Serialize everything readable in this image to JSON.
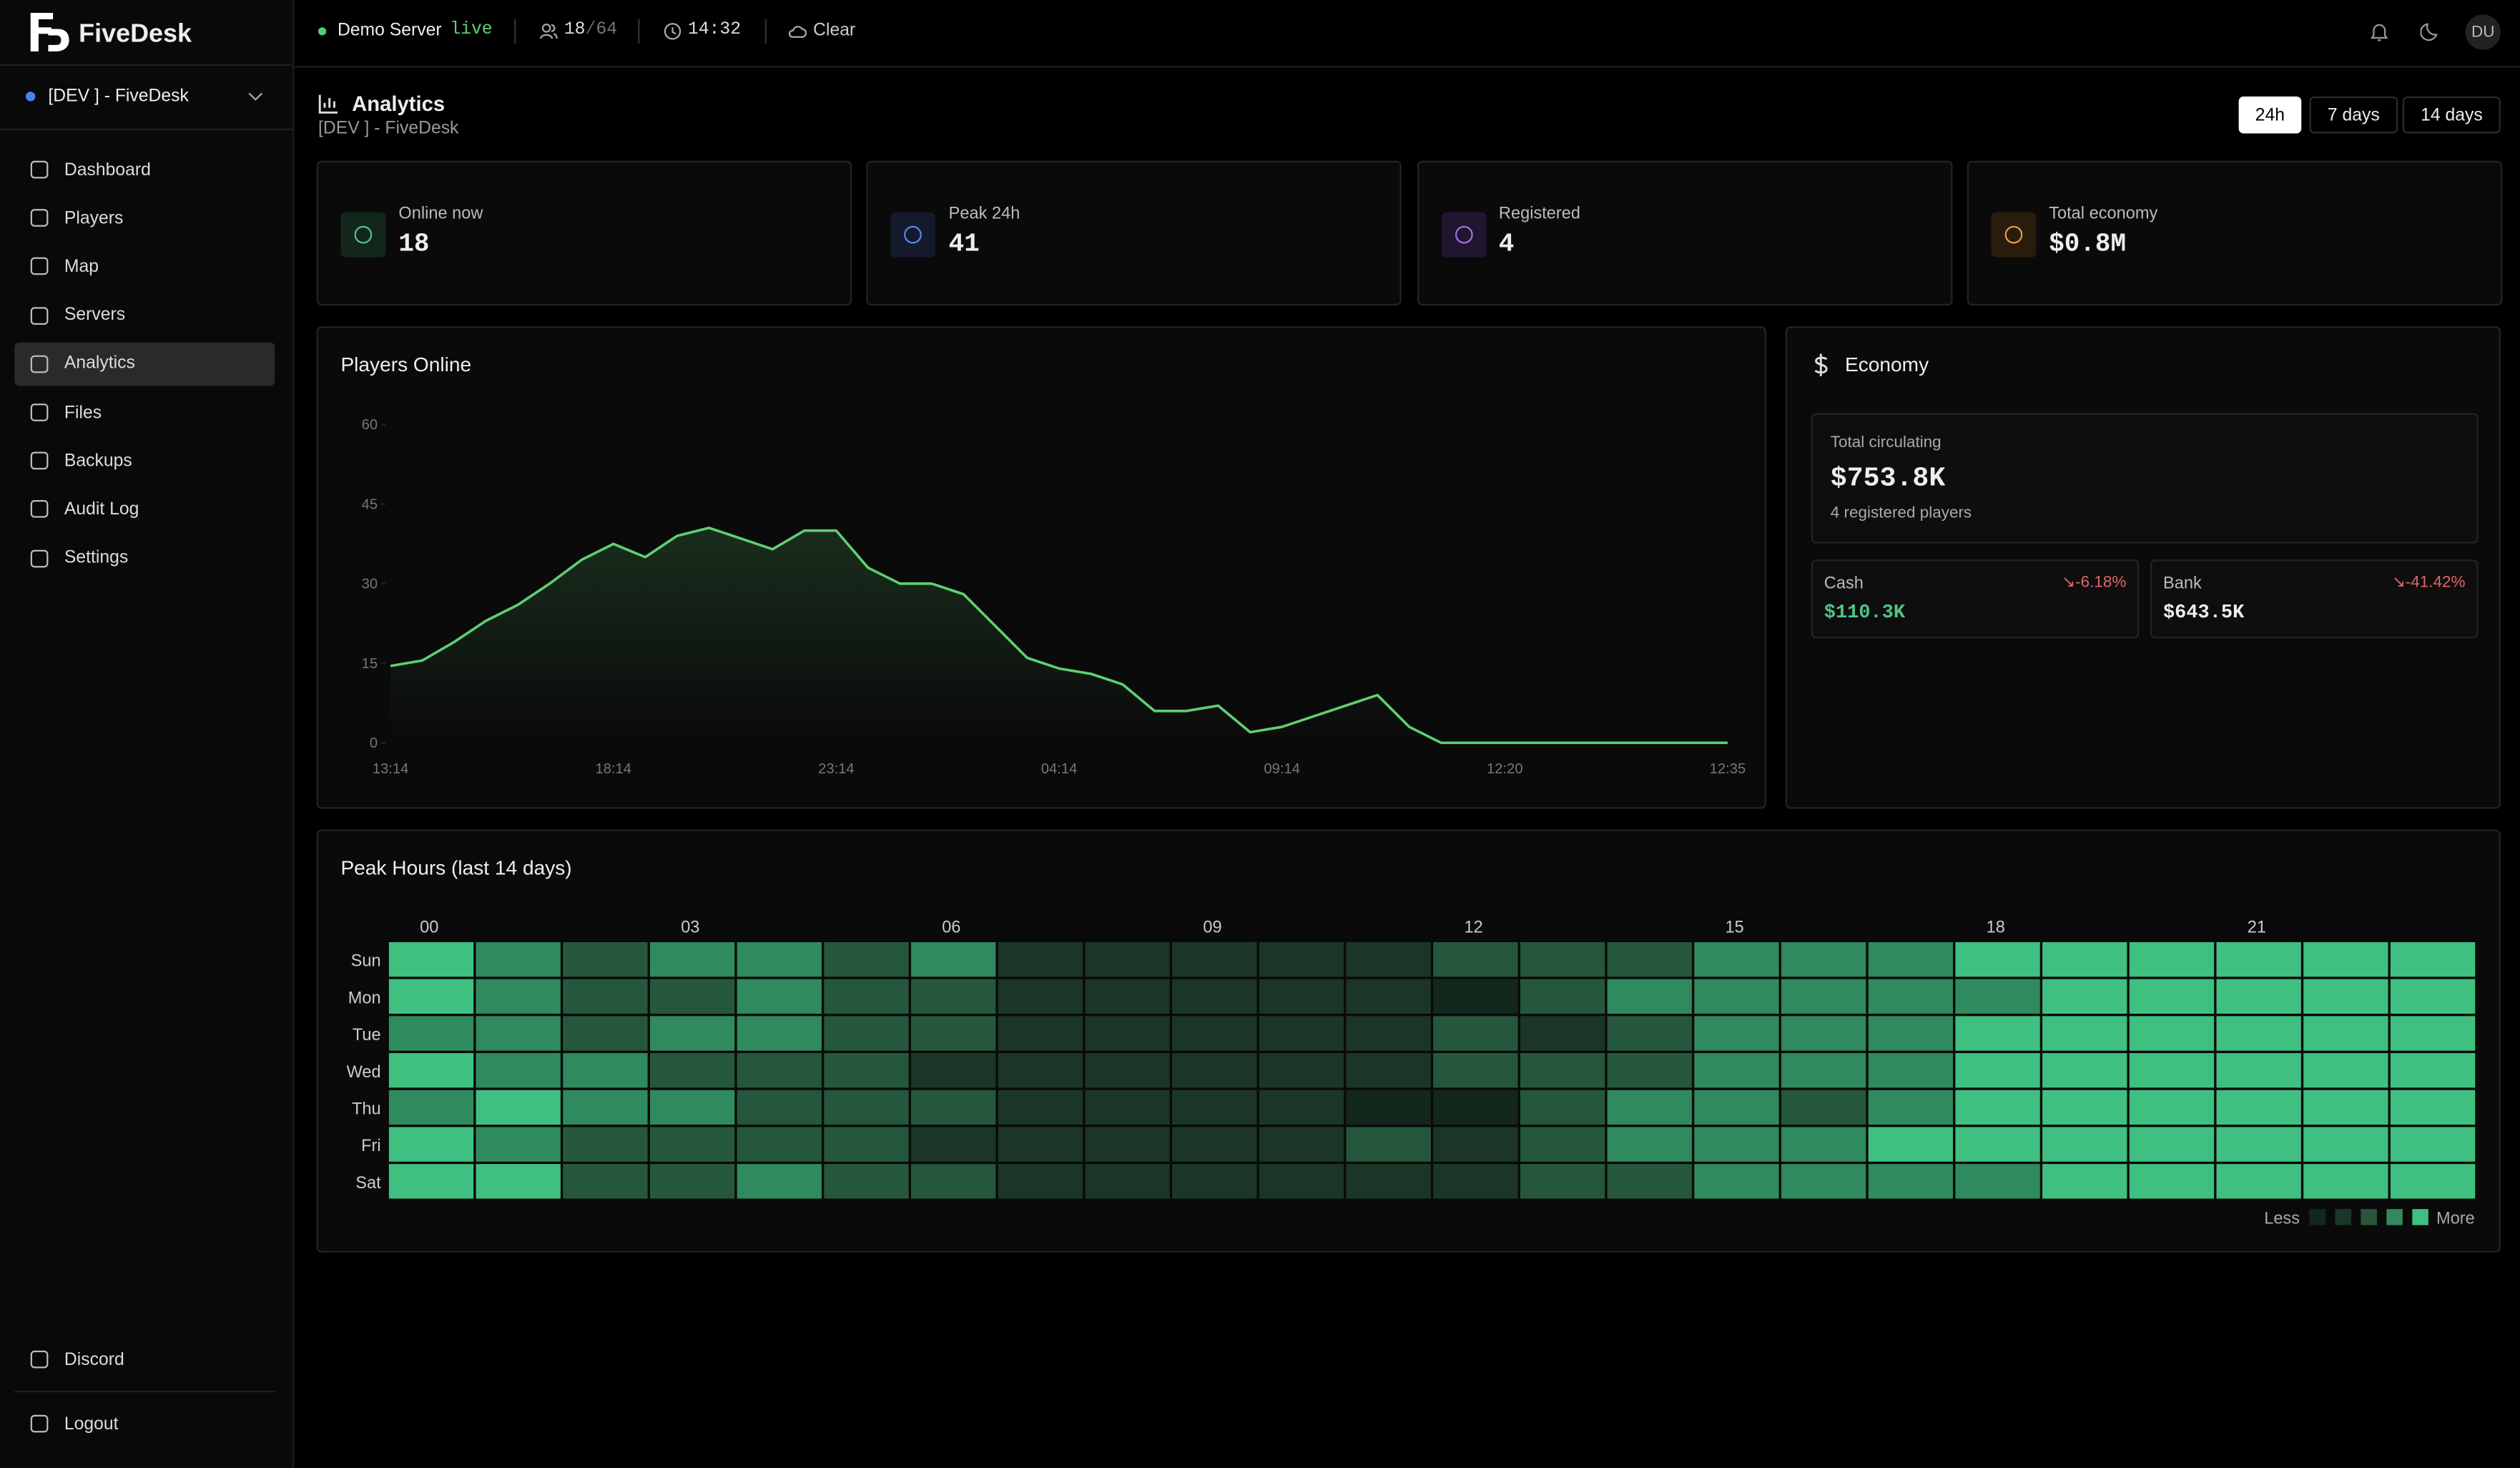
{
  "brand": "FiveDesk",
  "server_select": "[DEV ] - FiveDesk",
  "nav": [
    "Dashboard",
    "Players",
    "Map",
    "Servers",
    "Analytics",
    "Files",
    "Backups",
    "Audit Log",
    "Settings"
  ],
  "nav_bottom": [
    "Discord",
    "Logout"
  ],
  "topbar": {
    "server": "Demo Server",
    "status": "live",
    "players": 18,
    "max_players": 64,
    "time": "14:32",
    "weather": "Clear",
    "user": "DU"
  },
  "page": {
    "title": "Analytics",
    "subtitle": "[DEV ] - FiveDesk",
    "ranges": [
      "24h",
      "7 days",
      "14 days"
    ]
  },
  "stats": [
    {
      "label": "Online now",
      "value": "18"
    },
    {
      "label": "Peak 24h",
      "value": "41"
    },
    {
      "label": "Registered",
      "value": "4"
    },
    {
      "label": "Total economy",
      "value": "$0.8M"
    }
  ],
  "economy": {
    "title": "Economy",
    "total_label": "Total circulating",
    "total": "$753.8K",
    "note": "4 registered players",
    "cash": {
      "label": "Cash",
      "value": "$110.3K",
      "change": "-6.18%"
    },
    "bank": {
      "label": "Bank",
      "value": "$643.5K",
      "change": "-41.42%"
    }
  },
  "chart_data": [
    {
      "type": "line",
      "title": "Players Online",
      "color": "#5fcf72",
      "categories": [
        "13:14",
        null,
        null,
        null,
        null,
        null,
        null,
        "18:14",
        null,
        null,
        null,
        null,
        null,
        null,
        "23:14",
        null,
        null,
        null,
        null,
        null,
        null,
        "04:14",
        null,
        null,
        null,
        null,
        null,
        null,
        "09:14",
        null,
        null,
        null,
        null,
        null,
        null,
        "12:20",
        null,
        null,
        null,
        null,
        null,
        null,
        "12:35"
      ],
      "values": [
        14.5,
        15.5,
        19,
        23,
        26,
        30,
        34.5,
        37.5,
        35,
        39,
        40.5,
        38.5,
        36.5,
        40,
        40,
        33,
        30,
        30,
        28,
        22,
        16,
        14,
        13,
        11,
        6,
        6,
        7,
        2,
        3,
        5,
        7,
        9,
        3,
        0,
        0,
        0,
        0,
        0,
        0,
        0,
        0,
        0,
        0
      ],
      "ylim": [
        0,
        60
      ],
      "yticks": [
        0,
        15,
        30,
        45,
        60
      ]
    },
    {
      "type": "heatmap",
      "title": "Peak Hours (last 14 days)",
      "rows": [
        "Sun",
        "Mon",
        "Tue",
        "Wed",
        "Thu",
        "Fri",
        "Sat"
      ],
      "columns": [
        "00",
        null,
        null,
        "03",
        null,
        null,
        "06",
        null,
        null,
        "09",
        null,
        null,
        "12",
        null,
        null,
        "15",
        null,
        null,
        "18",
        null,
        null,
        "21",
        null,
        null
      ],
      "values": [
        [
          4,
          3,
          2,
          3,
          3,
          2,
          3,
          1,
          1,
          1,
          1,
          1,
          2,
          2,
          2,
          3,
          3,
          3,
          4,
          4,
          4,
          4,
          4,
          4
        ],
        [
          4,
          3,
          2,
          2,
          3,
          2,
          2,
          1,
          1,
          1,
          1,
          1,
          0,
          2,
          3,
          3,
          3,
          3,
          3,
          4,
          4,
          4,
          4,
          4
        ],
        [
          3,
          3,
          2,
          3,
          3,
          2,
          2,
          1,
          1,
          1,
          1,
          1,
          2,
          1,
          2,
          3,
          3,
          3,
          4,
          4,
          4,
          4,
          4,
          4
        ],
        [
          4,
          3,
          3,
          2,
          2,
          2,
          1,
          1,
          1,
          1,
          1,
          1,
          2,
          2,
          2,
          3,
          3,
          3,
          4,
          4,
          4,
          4,
          4,
          4
        ],
        [
          3,
          4,
          3,
          3,
          2,
          2,
          2,
          1,
          1,
          1,
          1,
          0,
          0,
          2,
          3,
          3,
          2,
          3,
          4,
          4,
          4,
          4,
          4,
          4
        ],
        [
          4,
          3,
          2,
          2,
          2,
          2,
          1,
          1,
          1,
          1,
          1,
          2,
          1,
          2,
          3,
          3,
          3,
          4,
          4,
          4,
          4,
          4,
          4,
          4
        ],
        [
          4,
          4,
          2,
          2,
          3,
          2,
          2,
          1,
          1,
          1,
          1,
          1,
          1,
          2,
          2,
          3,
          3,
          3,
          3,
          4,
          4,
          4,
          4,
          4
        ]
      ],
      "colors": [
        "#14271c",
        "#1b3627",
        "#25573c",
        "#2f8a5d",
        "#40c080"
      ],
      "legend": [
        "Less",
        "More"
      ]
    }
  ]
}
